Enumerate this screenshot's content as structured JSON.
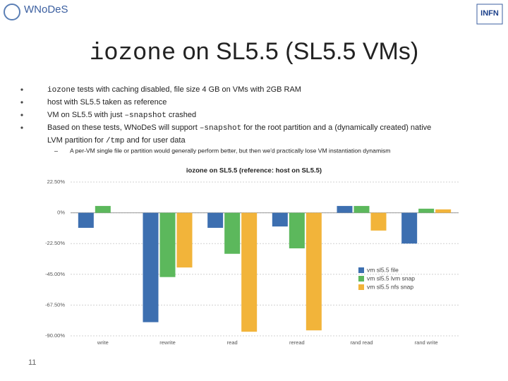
{
  "header": {
    "logo": "WNoDeS",
    "logo_right": "INFN"
  },
  "title": [
    {
      "text": "iozone",
      "mono": true
    },
    {
      "text": " on SL5.5 (SL5.5 VMs)",
      "mono": false
    }
  ],
  "bullets": [
    {
      "lines": [
        [
          {
            "text": "iozone",
            "mono": true
          },
          {
            "text": " tests with caching disabled, file size 4 GB on VMs with 2GB RAM",
            "mono": false
          }
        ]
      ]
    },
    {
      "lines": [
        [
          {
            "text": "host with SL5.5 taken as reference",
            "mono": false
          }
        ]
      ]
    },
    {
      "lines": [
        [
          {
            "text": "VM on SL5.5 with just ",
            "mono": false
          },
          {
            "text": "–snapshot",
            "mono": true
          },
          {
            "text": " crashed",
            "mono": false
          }
        ]
      ]
    },
    {
      "lines": [
        [
          {
            "text": "Based on these tests, WNoDeS will support ",
            "mono": false
          },
          {
            "text": "–snapshot",
            "mono": true
          },
          {
            "text": " for the root partition and a (dynamically created) native",
            "mono": false
          }
        ],
        [
          {
            "text": "LVM partition for ",
            "mono": false
          },
          {
            "text": "/tmp",
            "mono": true
          },
          {
            "text": " and for user data",
            "mono": false
          }
        ]
      ]
    }
  ],
  "sub_bullet": "A per-VM single file or partition would generally perform better, but then we'd practically lose VM instantiation dynamism",
  "page_number": "11",
  "chart_data": {
    "type": "bar",
    "title": "iozone on SL5.5 (reference: host on SL5.5)",
    "categories": [
      "write",
      "rewrite",
      "read",
      "reread",
      "rand read",
      "rand write"
    ],
    "series": [
      {
        "name": "vm sl5.5 file",
        "color": "#3d6fb0",
        "values": [
          -11,
          -80,
          -11,
          -10,
          5,
          -22.5
        ]
      },
      {
        "name": "vm sl5.5 lvm snap",
        "color": "#5cb85c",
        "values": [
          5,
          -47,
          -30,
          -26,
          5,
          3
        ]
      },
      {
        "name": "vm sl5.5 nfs snap",
        "color": "#f2b43a",
        "values": [
          null,
          -40,
          -87,
          -86,
          -13,
          2.5
        ]
      }
    ],
    "ylim": [
      -90,
      22.5
    ],
    "yticks": [
      {
        "value": 22.5,
        "label": "22.50%"
      },
      {
        "value": 0,
        "label": "0%"
      },
      {
        "value": -22.5,
        "label": "-22.50%"
      },
      {
        "value": -45,
        "label": "-45.00%"
      },
      {
        "value": -67.5,
        "label": "-67.50%"
      },
      {
        "value": -90,
        "label": "-90.00%"
      }
    ],
    "grid": true,
    "legend": "right"
  }
}
